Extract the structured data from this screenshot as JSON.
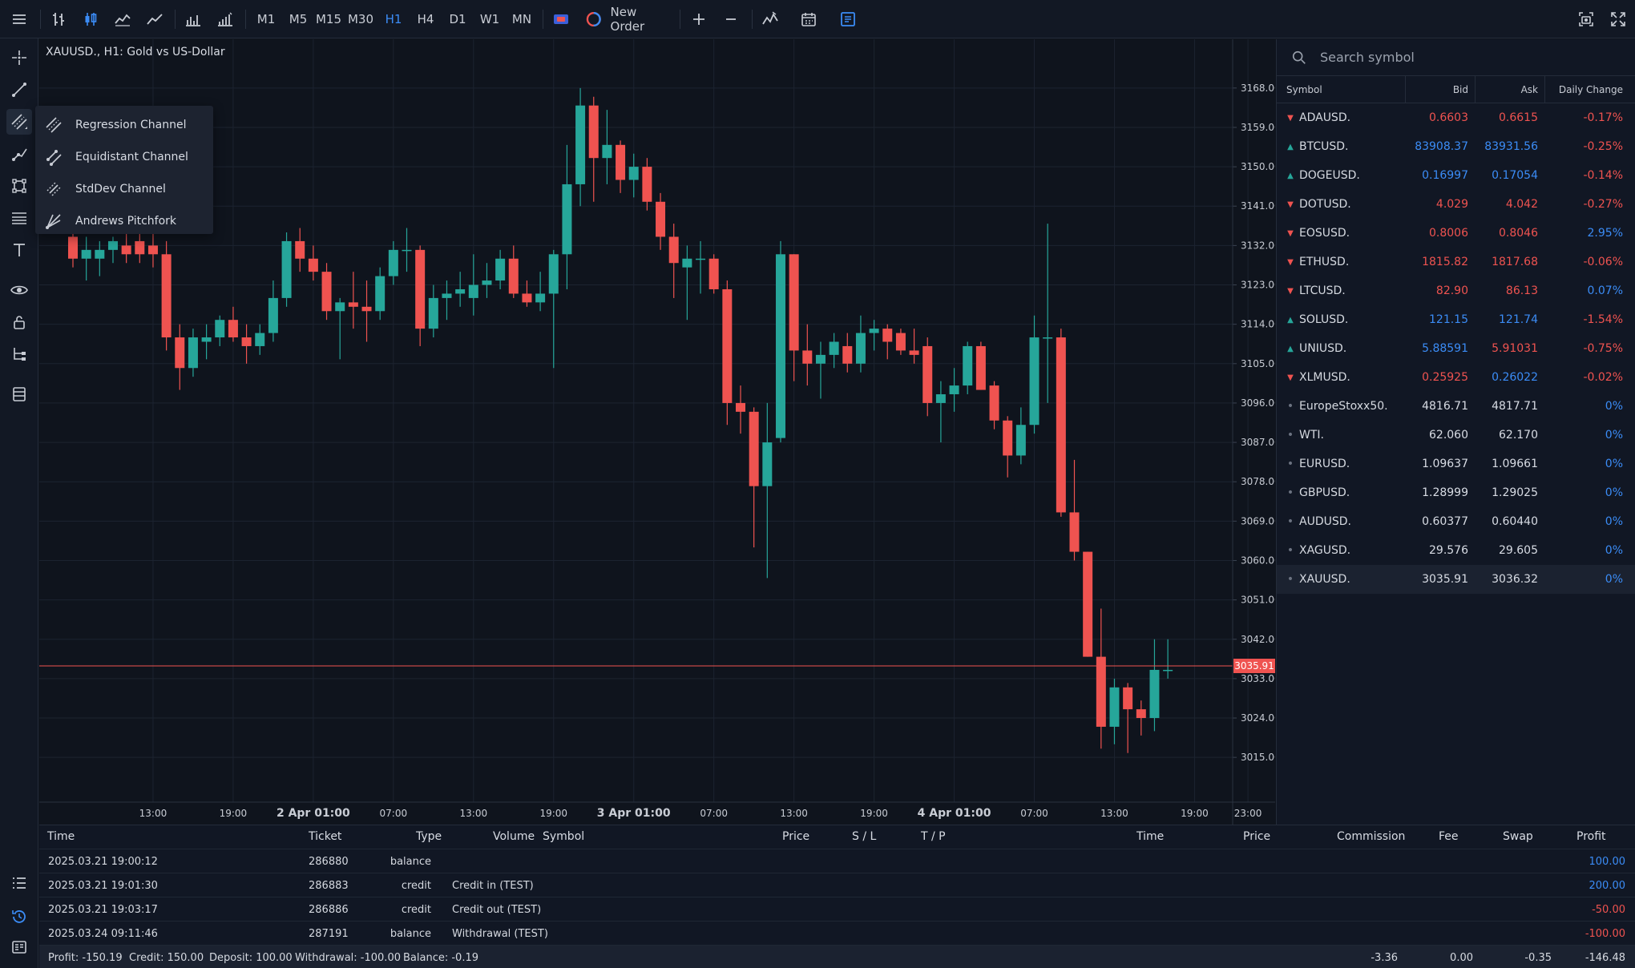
{
  "toolbar": {
    "timeframes": [
      "M1",
      "M5",
      "M15",
      "M30",
      "H1",
      "H4",
      "D1",
      "W1",
      "MN"
    ],
    "active_timeframe": "H1",
    "new_order_label": "New Order"
  },
  "flyout": {
    "items": [
      "Regression Channel",
      "Equidistant Channel",
      "StdDev Channel",
      "Andrews Pitchfork"
    ]
  },
  "chart": {
    "title": "XAUUSD., H1: Gold vs US-Dollar",
    "current_price_label": "3035.91"
  },
  "chart_data": {
    "type": "candlestick",
    "ylim": [
      3011.0,
      3172.0
    ],
    "y_ticks": [
      "3168.00",
      "3159.00",
      "3150.00",
      "3141.00",
      "3132.00",
      "3123.00",
      "3114.00",
      "3105.00",
      "3096.00",
      "3087.00",
      "3078.00",
      "3069.00",
      "3060.00",
      "3051.00",
      "3042.00",
      "3033.00",
      "3024.00",
      "3015.00"
    ],
    "x_ticks": [
      {
        "label": "13:00",
        "bar": 6,
        "bold": false
      },
      {
        "label": "19:00",
        "bar": 12,
        "bold": false
      },
      {
        "label": "2 Apr 01:00",
        "bar": 18,
        "bold": true
      },
      {
        "label": "07:00",
        "bar": 24,
        "bold": false
      },
      {
        "label": "13:00",
        "bar": 30,
        "bold": false
      },
      {
        "label": "19:00",
        "bar": 36,
        "bold": false
      },
      {
        "label": "3 Apr 01:00",
        "bar": 42,
        "bold": true
      },
      {
        "label": "07:00",
        "bar": 48,
        "bold": false
      },
      {
        "label": "13:00",
        "bar": 54,
        "bold": false
      },
      {
        "label": "19:00",
        "bar": 60,
        "bold": false
      },
      {
        "label": "4 Apr 01:00",
        "bar": 66,
        "bold": true
      },
      {
        "label": "07:00",
        "bar": 72,
        "bold": false
      },
      {
        "label": "13:00",
        "bar": 78,
        "bold": false
      },
      {
        "label": "19:00",
        "bar": 84,
        "bold": false
      },
      {
        "label": "23:00",
        "bar": 88,
        "bold": false
      }
    ],
    "current_price": 3035.91,
    "candles": [
      {
        "o": 3134,
        "h": 3136,
        "l": 3127,
        "c": 3129
      },
      {
        "o": 3129,
        "h": 3134,
        "l": 3124,
        "c": 3131
      },
      {
        "o": 3129,
        "h": 3133,
        "l": 3125,
        "c": 3131
      },
      {
        "o": 3131,
        "h": 3134,
        "l": 3128,
        "c": 3133
      },
      {
        "o": 3132,
        "h": 3137,
        "l": 3128,
        "c": 3130
      },
      {
        "o": 3133,
        "h": 3137,
        "l": 3128,
        "c": 3130
      },
      {
        "o": 3132,
        "h": 3138,
        "l": 3127,
        "c": 3130
      },
      {
        "o": 3130,
        "h": 3133,
        "l": 3108,
        "c": 3111
      },
      {
        "o": 3111,
        "h": 3114,
        "l": 3099,
        "c": 3104
      },
      {
        "o": 3104,
        "h": 3113,
        "l": 3102,
        "c": 3111
      },
      {
        "o": 3110,
        "h": 3114,
        "l": 3106,
        "c": 3111
      },
      {
        "o": 3111,
        "h": 3116,
        "l": 3109,
        "c": 3115
      },
      {
        "o": 3115,
        "h": 3118,
        "l": 3110,
        "c": 3111
      },
      {
        "o": 3111,
        "h": 3114,
        "l": 3105,
        "c": 3109
      },
      {
        "o": 3109,
        "h": 3114,
        "l": 3107,
        "c": 3112
      },
      {
        "o": 3112,
        "h": 3124,
        "l": 3110,
        "c": 3120
      },
      {
        "o": 3120,
        "h": 3135,
        "l": 3118,
        "c": 3133
      },
      {
        "o": 3133,
        "h": 3136,
        "l": 3126,
        "c": 3129
      },
      {
        "o": 3129,
        "h": 3132,
        "l": 3124,
        "c": 3126
      },
      {
        "o": 3126,
        "h": 3128,
        "l": 3115,
        "c": 3117
      },
      {
        "o": 3117,
        "h": 3120,
        "l": 3106,
        "c": 3119
      },
      {
        "o": 3119,
        "h": 3126,
        "l": 3113,
        "c": 3118
      },
      {
        "o": 3118,
        "h": 3124,
        "l": 3110,
        "c": 3117
      },
      {
        "o": 3117,
        "h": 3127,
        "l": 3115,
        "c": 3125
      },
      {
        "o": 3125,
        "h": 3133,
        "l": 3123,
        "c": 3131
      },
      {
        "o": 3131,
        "h": 3136,
        "l": 3126,
        "c": 3131
      },
      {
        "o": 3131,
        "h": 3132,
        "l": 3109,
        "c": 3113
      },
      {
        "o": 3113,
        "h": 3123,
        "l": 3111,
        "c": 3120
      },
      {
        "o": 3120,
        "h": 3124,
        "l": 3115,
        "c": 3121
      },
      {
        "o": 3121,
        "h": 3126,
        "l": 3118,
        "c": 3122
      },
      {
        "o": 3120,
        "h": 3130,
        "l": 3116,
        "c": 3123
      },
      {
        "o": 3123,
        "h": 3128,
        "l": 3120,
        "c": 3124
      },
      {
        "o": 3124,
        "h": 3131,
        "l": 3122,
        "c": 3129
      },
      {
        "o": 3129,
        "h": 3132,
        "l": 3120,
        "c": 3121
      },
      {
        "o": 3121,
        "h": 3124,
        "l": 3118,
        "c": 3119
      },
      {
        "o": 3119,
        "h": 3126,
        "l": 3117,
        "c": 3121
      },
      {
        "o": 3121,
        "h": 3131,
        "l": 3104,
        "c": 3130
      },
      {
        "o": 3130,
        "h": 3155,
        "l": 3122,
        "c": 3146
      },
      {
        "o": 3146,
        "h": 3168,
        "l": 3141,
        "c": 3164
      },
      {
        "o": 3164,
        "h": 3166,
        "l": 3142,
        "c": 3152
      },
      {
        "o": 3152,
        "h": 3163,
        "l": 3146,
        "c": 3155
      },
      {
        "o": 3155,
        "h": 3156,
        "l": 3144,
        "c": 3147
      },
      {
        "o": 3147,
        "h": 3153,
        "l": 3143,
        "c": 3150
      },
      {
        "o": 3150,
        "h": 3152,
        "l": 3140,
        "c": 3142
      },
      {
        "o": 3142,
        "h": 3144,
        "l": 3131,
        "c": 3134
      },
      {
        "o": 3134,
        "h": 3137,
        "l": 3120,
        "c": 3128
      },
      {
        "o": 3127,
        "h": 3132,
        "l": 3115,
        "c": 3129
      },
      {
        "o": 3129,
        "h": 3133,
        "l": 3121,
        "c": 3129
      },
      {
        "o": 3129,
        "h": 3130,
        "l": 3121,
        "c": 3122
      },
      {
        "o": 3122,
        "h": 3124,
        "l": 3091,
        "c": 3096
      },
      {
        "o": 3096,
        "h": 3100,
        "l": 3089,
        "c": 3094
      },
      {
        "o": 3094,
        "h": 3095,
        "l": 3063,
        "c": 3077
      },
      {
        "o": 3077,
        "h": 3096,
        "l": 3056,
        "c": 3087
      },
      {
        "o": 3088,
        "h": 3133,
        "l": 3087,
        "c": 3130
      },
      {
        "o": 3130,
        "h": 3130,
        "l": 3101,
        "c": 3108
      },
      {
        "o": 3108,
        "h": 3114,
        "l": 3100,
        "c": 3105
      },
      {
        "o": 3105,
        "h": 3110,
        "l": 3097,
        "c": 3107
      },
      {
        "o": 3107,
        "h": 3112,
        "l": 3104,
        "c": 3110
      },
      {
        "o": 3109,
        "h": 3112,
        "l": 3103,
        "c": 3105
      },
      {
        "o": 3105,
        "h": 3116,
        "l": 3103,
        "c": 3112
      },
      {
        "o": 3112,
        "h": 3115,
        "l": 3108,
        "c": 3113
      },
      {
        "o": 3113,
        "h": 3114,
        "l": 3106,
        "c": 3110
      },
      {
        "o": 3112,
        "h": 3113,
        "l": 3107,
        "c": 3108
      },
      {
        "o": 3108,
        "h": 3113,
        "l": 3105,
        "c": 3107
      },
      {
        "o": 3109,
        "h": 3111,
        "l": 3093,
        "c": 3096
      },
      {
        "o": 3096,
        "h": 3101,
        "l": 3087,
        "c": 3098
      },
      {
        "o": 3098,
        "h": 3104,
        "l": 3094,
        "c": 3100
      },
      {
        "o": 3100,
        "h": 3110,
        "l": 3098,
        "c": 3109
      },
      {
        "o": 3109,
        "h": 3110,
        "l": 3099,
        "c": 3099
      },
      {
        "o": 3100,
        "h": 3101,
        "l": 3090,
        "c": 3092
      },
      {
        "o": 3092,
        "h": 3093,
        "l": 3079,
        "c": 3084
      },
      {
        "o": 3084,
        "h": 3095,
        "l": 3082,
        "c": 3091
      },
      {
        "o": 3091,
        "h": 3116,
        "l": 3089,
        "c": 3111
      },
      {
        "o": 3111,
        "h": 3137,
        "l": 3096,
        "c": 3111
      },
      {
        "o": 3111,
        "h": 3113,
        "l": 3070,
        "c": 3071
      },
      {
        "o": 3071,
        "h": 3083,
        "l": 3060,
        "c": 3062
      },
      {
        "o": 3062,
        "h": 3062,
        "l": 3038,
        "c": 3038
      },
      {
        "o": 3038,
        "h": 3049,
        "l": 3017,
        "c": 3022
      },
      {
        "o": 3022,
        "h": 3033,
        "l": 3018,
        "c": 3031
      },
      {
        "o": 3031,
        "h": 3032,
        "l": 3016,
        "c": 3026
      },
      {
        "o": 3026,
        "h": 3028,
        "l": 3020,
        "c": 3024
      },
      {
        "o": 3024,
        "h": 3042,
        "l": 3021,
        "c": 3035
      },
      {
        "o": 3035,
        "h": 3042,
        "l": 3033,
        "c": 3035
      }
    ]
  },
  "watchlist": {
    "search_placeholder": "Search symbol",
    "headers": {
      "symbol": "Symbol",
      "bid": "Bid",
      "ask": "Ask",
      "change": "Daily Change"
    },
    "rows": [
      {
        "symbol": "ADAUSD.",
        "dir": "down",
        "bid": "0.6603",
        "ask": "0.6615",
        "change": "-0.17%",
        "bc": "red",
        "ac": "red",
        "cc": "red"
      },
      {
        "symbol": "BTCUSD.",
        "dir": "up",
        "bid": "83908.37",
        "ask": "83931.56",
        "change": "-0.25%",
        "bc": "blue",
        "ac": "blue",
        "cc": "red"
      },
      {
        "symbol": "DOGEUSD.",
        "dir": "up",
        "bid": "0.16997",
        "ask": "0.17054",
        "change": "-0.14%",
        "bc": "blue",
        "ac": "blue",
        "cc": "red"
      },
      {
        "symbol": "DOTUSD.",
        "dir": "down",
        "bid": "4.029",
        "ask": "4.042",
        "change": "-0.27%",
        "bc": "red",
        "ac": "red",
        "cc": "red"
      },
      {
        "symbol": "EOSUSD.",
        "dir": "down",
        "bid": "0.8006",
        "ask": "0.8046",
        "change": "2.95%",
        "bc": "red",
        "ac": "red",
        "cc": "blue"
      },
      {
        "symbol": "ETHUSD.",
        "dir": "down",
        "bid": "1815.82",
        "ask": "1817.68",
        "change": "-0.06%",
        "bc": "red",
        "ac": "red",
        "cc": "red"
      },
      {
        "symbol": "LTCUSD.",
        "dir": "down",
        "bid": "82.90",
        "ask": "86.13",
        "change": "0.07%",
        "bc": "red",
        "ac": "red",
        "cc": "blue"
      },
      {
        "symbol": "SOLUSD.",
        "dir": "up",
        "bid": "121.15",
        "ask": "121.74",
        "change": "-1.54%",
        "bc": "blue",
        "ac": "blue",
        "cc": "red"
      },
      {
        "symbol": "UNIUSD.",
        "dir": "up",
        "bid": "5.88591",
        "ask": "5.91031",
        "change": "-0.75%",
        "bc": "blue",
        "ac": "red",
        "cc": "red"
      },
      {
        "symbol": "XLMUSD.",
        "dir": "down",
        "bid": "0.25925",
        "ask": "0.26022",
        "change": "-0.02%",
        "bc": "red",
        "ac": "blue",
        "cc": "red"
      },
      {
        "symbol": "EuropeStoxx50.",
        "dir": "flat",
        "bid": "4816.71",
        "ask": "4817.71",
        "change": "0%",
        "bc": "white",
        "ac": "white",
        "cc": "blue"
      },
      {
        "symbol": "WTI.",
        "dir": "flat",
        "bid": "62.060",
        "ask": "62.170",
        "change": "0%",
        "bc": "white",
        "ac": "white",
        "cc": "blue"
      },
      {
        "symbol": "EURUSD.",
        "dir": "flat",
        "bid": "1.09637",
        "ask": "1.09661",
        "change": "0%",
        "bc": "white",
        "ac": "white",
        "cc": "blue"
      },
      {
        "symbol": "GBPUSD.",
        "dir": "flat",
        "bid": "1.28999",
        "ask": "1.29025",
        "change": "0%",
        "bc": "white",
        "ac": "white",
        "cc": "blue"
      },
      {
        "symbol": "AUDUSD.",
        "dir": "flat",
        "bid": "0.60377",
        "ask": "0.60440",
        "change": "0%",
        "bc": "white",
        "ac": "white",
        "cc": "blue"
      },
      {
        "symbol": "XAGUSD.",
        "dir": "flat",
        "bid": "29.576",
        "ask": "29.605",
        "change": "0%",
        "bc": "white",
        "ac": "white",
        "cc": "blue"
      },
      {
        "symbol": "XAUUSD.",
        "dir": "flat",
        "bid": "3035.91",
        "ask": "3036.32",
        "change": "0%",
        "bc": "white",
        "ac": "white",
        "cc": "blue",
        "selected": true
      }
    ]
  },
  "history": {
    "headers": {
      "time": "Time",
      "ticket": "Ticket",
      "type": "Type",
      "volume": "Volume",
      "symbol": "Symbol",
      "price": "Price",
      "sl": "S / L",
      "tp": "T / P",
      "time2": "Time",
      "price2": "Price",
      "commission": "Commission",
      "fee": "Fee",
      "swap": "Swap",
      "profit": "Profit"
    },
    "rows": [
      {
        "time": "2025.03.21 19:00:12",
        "ticket": "286880",
        "type": "balance",
        "comment": "",
        "profit": "100.00",
        "pc": "blue"
      },
      {
        "time": "2025.03.21 19:01:30",
        "ticket": "286883",
        "type": "credit",
        "comment": "Credit in (TEST)",
        "profit": "200.00",
        "pc": "blue"
      },
      {
        "time": "2025.03.21 19:03:17",
        "ticket": "286886",
        "type": "credit",
        "comment": "Credit out (TEST)",
        "profit": "-50.00",
        "pc": "red"
      },
      {
        "time": "2025.03.24 09:11:46",
        "ticket": "287191",
        "type": "balance",
        "comment": "Withdrawal (TEST)",
        "profit": "-100.00",
        "pc": "red"
      }
    ],
    "summary": {
      "profit": "Profit: -150.19",
      "credit": "Credit: 150.00",
      "deposit": "Deposit: 100.00",
      "withdrawal": "Withdrawal: -100.00",
      "balance": "Balance: -0.19",
      "commission": "-3.36",
      "fee": "0.00",
      "swap": "-0.35",
      "profit_total": "-146.48"
    }
  },
  "colors": {
    "up": "#26a69a",
    "down": "#ef5350",
    "accent": "#3b8cf6",
    "background": "#0f141d",
    "grid": "#1c2330"
  }
}
